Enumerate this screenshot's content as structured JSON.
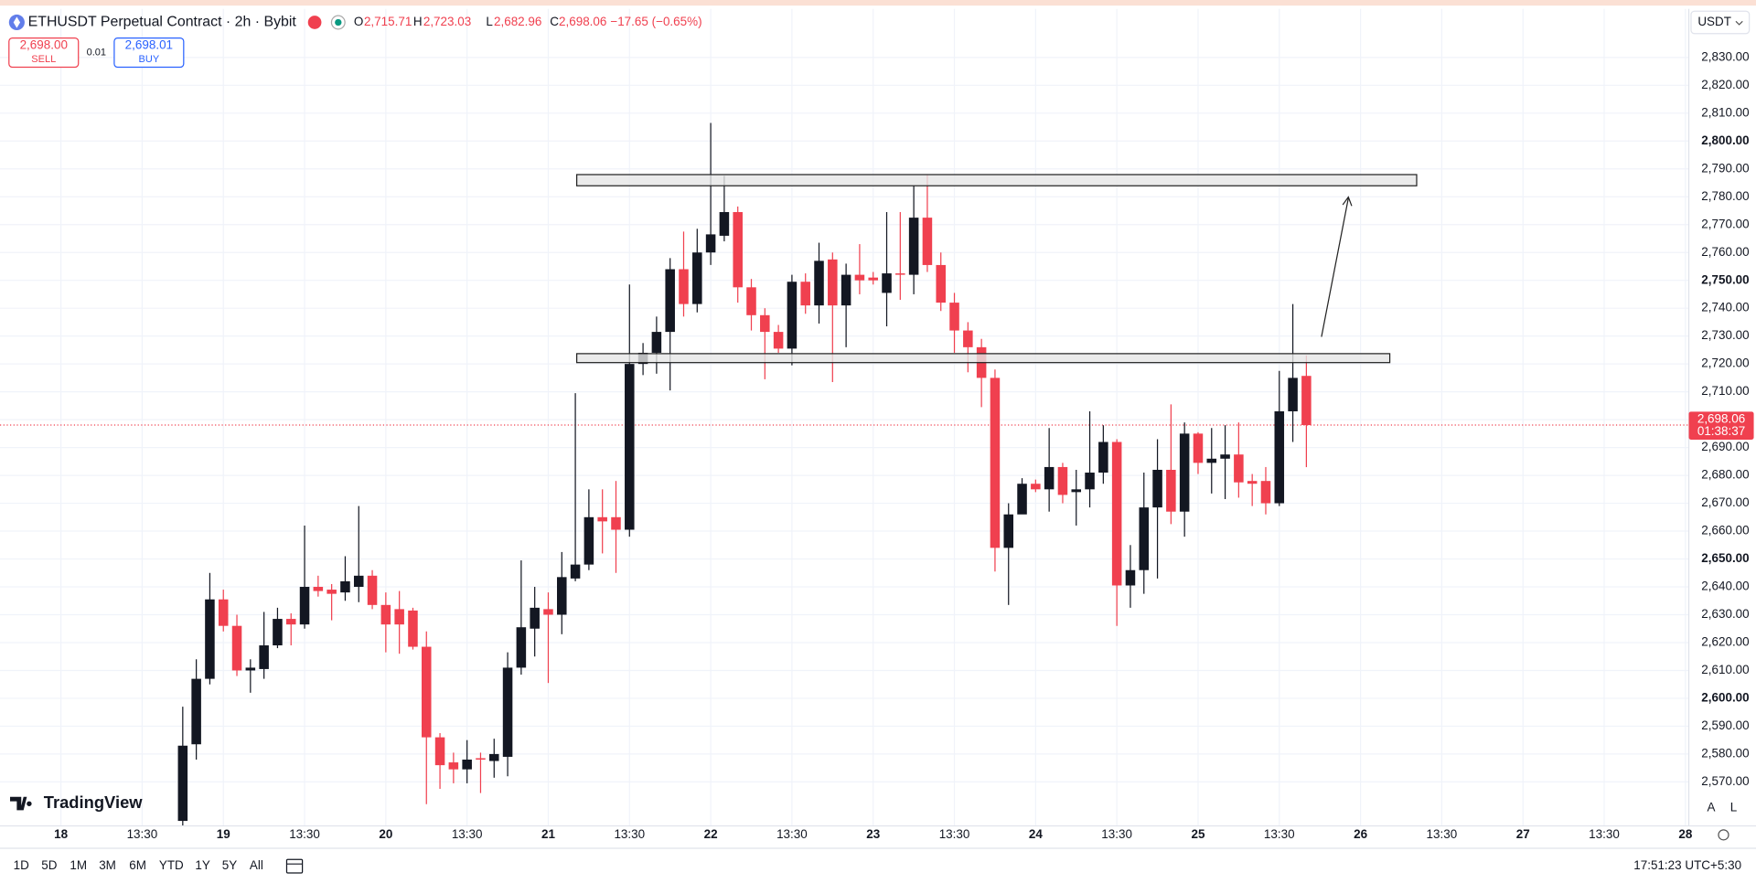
{
  "header": {
    "title": "ETHUSDT Perpetual Contract · 2h · Bybit",
    "ohlc": [
      {
        "key": "O",
        "value": "2,715.71"
      },
      {
        "key": "H",
        "value": "2,723.03"
      },
      {
        "key": "L",
        "value": "2,682.96"
      },
      {
        "key": "C",
        "value": "2,698.06"
      }
    ],
    "change": "−17.65 (−0.65%)"
  },
  "trade": {
    "sell_price": "2,698.00",
    "sell": "SELL",
    "spread": "0.01",
    "buy_price": "2,698.01",
    "buy": "BUY"
  },
  "currency": "USDT",
  "price_tag": {
    "price": "2,698.06",
    "countdown": "01:38:37"
  },
  "logo": "TradingView",
  "axis_buttons": [
    "A",
    "L"
  ],
  "toolbar": {
    "ranges": [
      "1D",
      "5D",
      "1M",
      "3M",
      "6M",
      "YTD",
      "1Y",
      "5Y",
      "All"
    ],
    "clock": "17:51:23 UTC+5:30"
  },
  "chart_data": {
    "type": "candlestick",
    "up_color": "#131722",
    "down_color": "#f0404f",
    "grid": true,
    "x": [
      18,
      20,
      22,
      24,
      26,
      28,
      30,
      32,
      34,
      36,
      38,
      40,
      42,
      44,
      46,
      48,
      50,
      52,
      54,
      56,
      58,
      60,
      62,
      64,
      66,
      68,
      70,
      72,
      74,
      76,
      78,
      80,
      82,
      84,
      86,
      88,
      90,
      92,
      94,
      96,
      98,
      100,
      102,
      104,
      106,
      108,
      110,
      112,
      114,
      116,
      118,
      120,
      122,
      124,
      126,
      128,
      130,
      132,
      134,
      136,
      138,
      140,
      142,
      144,
      146,
      148,
      150,
      152,
      154,
      156,
      158,
      160,
      162,
      164,
      166,
      168,
      170,
      172,
      174,
      176,
      178,
      180,
      182,
      184
    ],
    "open": [
      2556,
      2583.5,
      2607,
      2635.5,
      2626,
      2610,
      2610.5,
      2619,
      2628.5,
      2626.5,
      2640,
      2639,
      2638,
      2640,
      2644,
      2633.5,
      2632,
      2631.5,
      2618.5,
      2586,
      2577,
      2574.5,
      2578.5,
      2577.5,
      2579,
      2611,
      2625,
      2632,
      2630,
      2643,
      2648,
      2665,
      2665,
      2660.5,
      2720,
      2724,
      2731.5,
      2754,
      2741.5,
      2760,
      2766,
      2774.5,
      2747.5,
      2737.5,
      2731.5,
      2725.5,
      2749.5,
      2741,
      2757.5,
      2741,
      2752,
      2751,
      2745.5,
      2752.5,
      2752,
      2772.5,
      2755.5,
      2742,
      2732,
      2726,
      2715,
      2654,
      2666,
      2677,
      2675,
      2683,
      2674,
      2675,
      2681,
      2692,
      2640.5,
      2646,
      2668.5,
      2682,
      2667,
      2695,
      2684.5,
      2686,
      2687.5,
      2678,
      2678,
      2670,
      2703,
      2715.71
    ],
    "high": [
      2597,
      2614,
      2645,
      2639,
      2630,
      2614,
      2631,
      2632.5,
      2630.5,
      2662,
      2644,
      2641,
      2651,
      2669,
      2646,
      2638,
      2638.5,
      2632.5,
      2624,
      2587.5,
      2580.5,
      2585,
      2580.5,
      2585.5,
      2616.5,
      2649.5,
      2640,
      2638,
      2652.5,
      2709.5,
      2675,
      2675,
      2678,
      2748.5,
      2727.5,
      2737,
      2758,
      2767.5,
      2768.5,
      2806.5,
      2787.5,
      2776.5,
      2750.5,
      2740,
      2734,
      2752,
      2752.5,
      2763.5,
      2760,
      2756,
      2763,
      2753,
      2774.5,
      2774.5,
      2784,
      2788,
      2760,
      2745.5,
      2735,
      2729,
      2718,
      2670,
      2679,
      2678.5,
      2697,
      2684.5,
      2682,
      2703,
      2698,
      2693,
      2655,
      2681,
      2693,
      2705.5,
      2699,
      2695.5,
      2697,
      2698,
      2699,
      2680.5,
      2683,
      2717.5,
      2741.5,
      2723.03
    ],
    "low": [
      2550,
      2578,
      2605,
      2624,
      2608,
      2602,
      2607,
      2618,
      2619,
      2625,
      2636.5,
      2628,
      2635,
      2634.5,
      2632,
      2616.5,
      2616,
      2617.5,
      2562,
      2567.5,
      2569.5,
      2569.5,
      2566,
      2571.5,
      2572,
      2608.5,
      2615,
      2605.5,
      2623,
      2642,
      2646,
      2652,
      2645,
      2658,
      2716,
      2716.5,
      2710.5,
      2737,
      2738.5,
      2755.5,
      2764,
      2742,
      2732,
      2714.5,
      2724,
      2719.5,
      2738,
      2734.5,
      2713.5,
      2726,
      2745,
      2748.5,
      2733.5,
      2743,
      2745,
      2753,
      2739,
      2724,
      2717,
      2704.5,
      2645.5,
      2633.5,
      2667,
      2674,
      2667,
      2670,
      2662,
      2668.5,
      2677,
      2626,
      2632.5,
      2637.5,
      2643,
      2662.5,
      2658,
      2680.5,
      2673.5,
      2671.5,
      2672,
      2669,
      2666,
      2669,
      2692,
      2682.96
    ],
    "close": [
      2583,
      2607,
      2635.5,
      2626,
      2610,
      2611,
      2619,
      2628.5,
      2626.5,
      2640,
      2638.5,
      2637.5,
      2642,
      2644,
      2633.5,
      2626.5,
      2626.5,
      2618.5,
      2586,
      2576,
      2574.5,
      2578,
      2578,
      2580,
      2611,
      2625.5,
      2632.5,
      2630,
      2643.5,
      2648,
      2665,
      2663.5,
      2660.5,
      2720,
      2724,
      2731.5,
      2754,
      2741.5,
      2760,
      2766.5,
      2774.5,
      2747.5,
      2737.5,
      2731.5,
      2725.5,
      2749.5,
      2741,
      2757,
      2741,
      2752,
      2750,
      2750,
      2752.5,
      2752,
      2772.5,
      2755.5,
      2742,
      2732,
      2726,
      2715,
      2654,
      2666,
      2677,
      2675,
      2683,
      2673,
      2675,
      2681,
      2692,
      2640.5,
      2646,
      2668.5,
      2682,
      2667,
      2695,
      2684.5,
      2686,
      2687.5,
      2677.5,
      2677,
      2670,
      2703,
      2715,
      2698.06
    ],
    "xlim": [
      -9,
      240.5
    ],
    "ylim": [
      2554.2,
      2847.4
    ],
    "xticks": [
      {
        "value": 0,
        "label": "18"
      },
      {
        "value": 12,
        "label": "13:30"
      },
      {
        "value": 24,
        "label": "19"
      },
      {
        "value": 36,
        "label": "13:30"
      },
      {
        "value": 48,
        "label": "20"
      },
      {
        "value": 60,
        "label": "13:30"
      },
      {
        "value": 72,
        "label": "21"
      },
      {
        "value": 84,
        "label": "13:30"
      },
      {
        "value": 96,
        "label": "22"
      },
      {
        "value": 108,
        "label": "13:30"
      },
      {
        "value": 120,
        "label": "23"
      },
      {
        "value": 132,
        "label": "13:30"
      },
      {
        "value": 144,
        "label": "24"
      },
      {
        "value": 156,
        "label": "13:30"
      },
      {
        "value": 168,
        "label": "25"
      },
      {
        "value": 180,
        "label": "13:30"
      },
      {
        "value": 192,
        "label": "26"
      },
      {
        "value": 204,
        "label": "13:30"
      },
      {
        "value": 216,
        "label": "27"
      },
      {
        "value": 228,
        "label": "13:30"
      },
      {
        "value": 240,
        "label": "28"
      }
    ],
    "yticks": [
      {
        "value": 2570,
        "label": "2,570.00"
      },
      {
        "value": 2580,
        "label": "2,580.00"
      },
      {
        "value": 2590,
        "label": "2,590.00"
      },
      {
        "value": 2600,
        "label": "2,600.00"
      },
      {
        "value": 2610,
        "label": "2,610.00"
      },
      {
        "value": 2620,
        "label": "2,620.00"
      },
      {
        "value": 2630,
        "label": "2,630.00"
      },
      {
        "value": 2640,
        "label": "2,640.00"
      },
      {
        "value": 2650,
        "label": "2,650.00"
      },
      {
        "value": 2660,
        "label": "2,660.00"
      },
      {
        "value": 2670,
        "label": "2,670.00"
      },
      {
        "value": 2680,
        "label": "2,680.00"
      },
      {
        "value": 2690,
        "label": "2,690.00"
      },
      {
        "value": 2700,
        "label": "2,700.00"
      },
      {
        "value": 2710,
        "label": "2,710.00"
      },
      {
        "value": 2720,
        "label": "2,720.00"
      },
      {
        "value": 2730,
        "label": "2,730.00"
      },
      {
        "value": 2740,
        "label": "2,740.00"
      },
      {
        "value": 2750,
        "label": "2,750.00"
      },
      {
        "value": 2760,
        "label": "2,760.00"
      },
      {
        "value": 2770,
        "label": "2,770.00"
      },
      {
        "value": 2780,
        "label": "2,780.00"
      },
      {
        "value": 2790,
        "label": "2,790.00"
      },
      {
        "value": 2800,
        "label": "2,800.00"
      },
      {
        "value": 2810,
        "label": "2,810.00"
      },
      {
        "value": 2820,
        "label": "2,820.00"
      },
      {
        "value": 2830,
        "label": "2,830.00"
      }
    ]
  }
}
